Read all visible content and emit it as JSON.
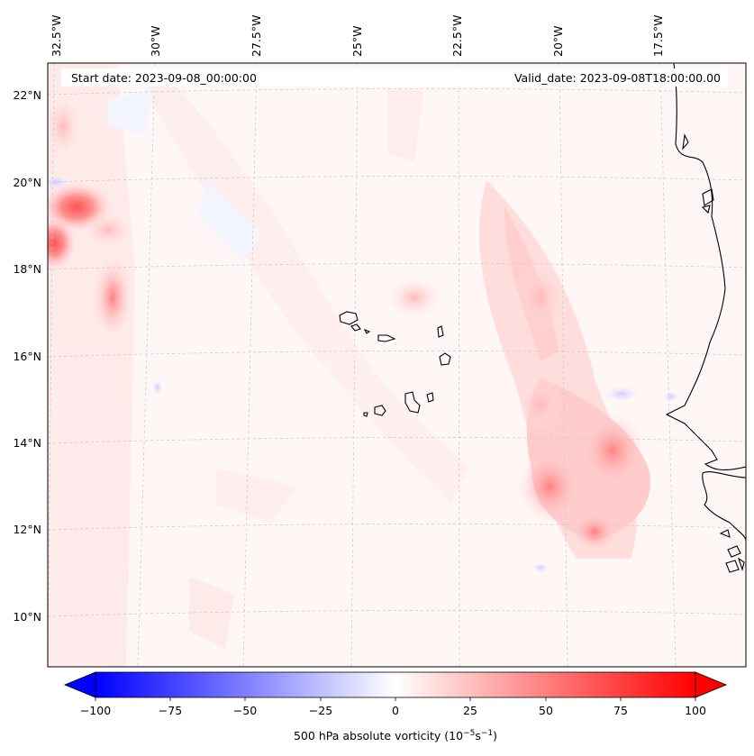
{
  "header": {
    "start_date": "Start date: 2023-09-08_00:00:00",
    "valid_date": "Valid_date: 2023-09-08T18:00:00.00"
  },
  "map": {
    "lon_labels": [
      "32.5°W",
      "30°W",
      "27.5°W",
      "25°W",
      "22.5°W",
      "20°W",
      "17.5°W"
    ],
    "lat_labels": [
      "22°N",
      "20°N",
      "18°N",
      "16°N",
      "14°N",
      "12°N",
      "10°N"
    ],
    "gridlines": "dashed"
  },
  "colorbar": {
    "label_main": "500 hPa absolute vorticity (10",
    "label_exp1": "−5",
    "label_mid": "s",
    "label_exp2": "−1",
    "label_end": ")",
    "ticks": [
      "−100",
      "−75",
      "−50",
      "−25",
      "0",
      "25",
      "50",
      "75",
      "100"
    ],
    "range": [
      -100,
      100
    ],
    "colors": {
      "low": "#0000ff",
      "mid": "#ffffff",
      "high": "#ff0000"
    }
  }
}
